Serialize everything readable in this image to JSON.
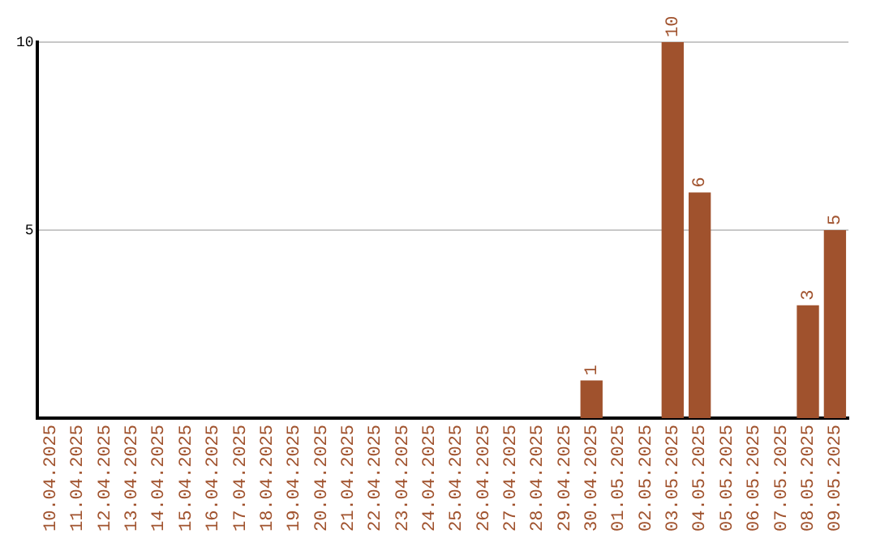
{
  "chart_data": {
    "type": "bar",
    "categories": [
      "10.04.2025",
      "11.04.2025",
      "12.04.2025",
      "13.04.2025",
      "14.04.2025",
      "15.04.2025",
      "16.04.2025",
      "17.04.2025",
      "18.04.2025",
      "19.04.2025",
      "20.04.2025",
      "21.04.2025",
      "22.04.2025",
      "23.04.2025",
      "24.04.2025",
      "25.04.2025",
      "26.04.2025",
      "27.04.2025",
      "28.04.2025",
      "29.04.2025",
      "30.04.2025",
      "01.05.2025",
      "02.05.2025",
      "03.05.2025",
      "04.05.2025",
      "05.05.2025",
      "06.05.2025",
      "07.05.2025",
      "08.05.2025",
      "09.05.2025"
    ],
    "values": [
      0,
      0,
      0,
      0,
      0,
      0,
      0,
      0,
      0,
      0,
      0,
      0,
      0,
      0,
      0,
      0,
      0,
      0,
      0,
      0,
      1,
      0,
      0,
      10,
      6,
      0,
      0,
      0,
      3,
      5
    ],
    "value_labels": [
      null,
      null,
      null,
      null,
      null,
      null,
      null,
      null,
      null,
      null,
      null,
      null,
      null,
      null,
      null,
      null,
      null,
      null,
      null,
      null,
      "1",
      null,
      null,
      "10",
      "6",
      null,
      null,
      null,
      "3",
      "5"
    ],
    "color": "#a0522d",
    "ylim": [
      0,
      10
    ],
    "yticks": [
      5,
      10
    ],
    "grid": "y",
    "legend": false
  }
}
